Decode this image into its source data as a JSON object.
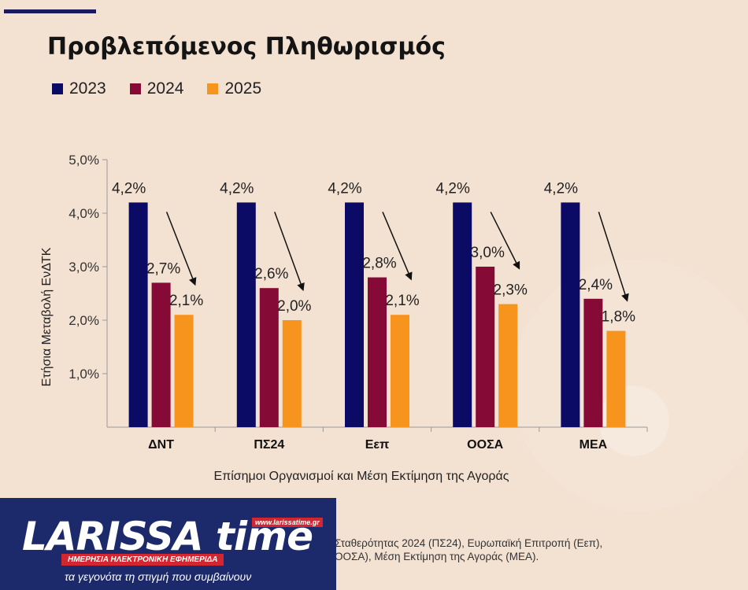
{
  "chart_data": {
    "type": "bar",
    "title": "Προβλεπόμενος Πληθωρισμός",
    "categories": [
      "ΔΝΤ",
      "ΠΣ24",
      "Εεπ",
      "ΟΟΣΑ",
      "ΜΕΑ"
    ],
    "series": [
      {
        "name": "2023",
        "color": "#0b0b66",
        "values": [
          4.2,
          4.2,
          4.2,
          4.2,
          4.2
        ],
        "labels": [
          "4,2%",
          "4,2%",
          "4,2%",
          "4,2%",
          "4,2%"
        ]
      },
      {
        "name": "2024",
        "color": "#860a36",
        "values": [
          2.7,
          2.6,
          2.8,
          3.0,
          2.4
        ],
        "labels": [
          "2,7%",
          "2,6%",
          "2,8%",
          "3,0%",
          "2,4%"
        ]
      },
      {
        "name": "2025",
        "color": "#f7941d",
        "values": [
          2.1,
          2.0,
          2.1,
          2.3,
          1.8
        ],
        "labels": [
          "2,1%",
          "2,0%",
          "2,1%",
          "2,3%",
          "1,8%"
        ]
      }
    ],
    "ylabel": "Ετήσια Μεταβολή ΕνΔΤΚ",
    "xlabel": "Επίσημοι Οργανισμοί και Μέση Εκτίμηση της Αγοράς",
    "ylim": [
      0,
      5
    ],
    "yticks": [
      1,
      2,
      3,
      4,
      5
    ],
    "ytick_labels": [
      "1,0%",
      "2,0%",
      "3,0%",
      "4,0%",
      "5,0%"
    ],
    "grid": false,
    "legend_position": "top-left"
  },
  "footnote": {
    "line1": "Σταθερότητας 2024 (ΠΣ24), Ευρωπαϊκή Επιτροπή (Εεπ),",
    "line2": "ΟΟΣΑ), Μέση Εκτίμηση της  Αγοράς (ΜΕΑ)."
  },
  "logo": {
    "name": "LARISSA time",
    "url": "www.larissatime.gr",
    "strip": "ΗΜΕΡΗΣΙΑ ΗΛΕΚΤΡΟΝΙΚΗ ΕΦΗΜΕΡΙΔΑ",
    "slogan": "τα γεγονότα τη στιγμή που συμβαίνουν"
  }
}
